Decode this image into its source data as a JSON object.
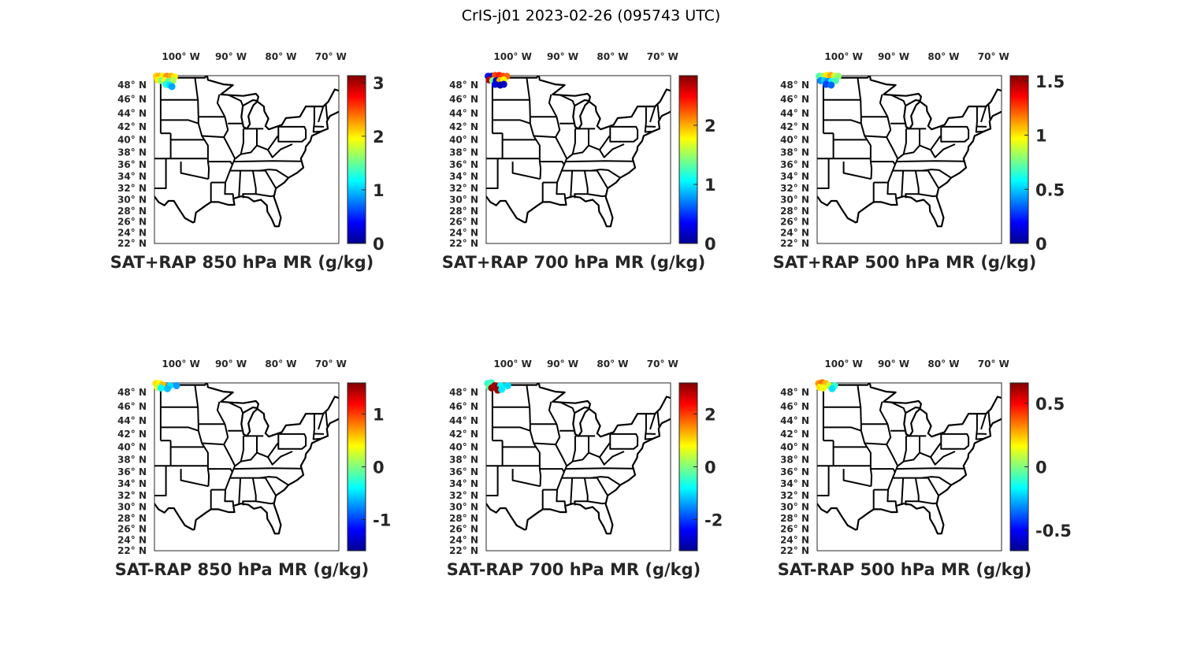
{
  "figure": {
    "title": "CrIS-j01 2023-02-26 (095743 UTC)"
  },
  "lon_ticks": [
    {
      "value": -100,
      "label": "100° W"
    },
    {
      "value": -90,
      "label": "90° W"
    },
    {
      "value": -80,
      "label": "80° W"
    },
    {
      "value": -70,
      "label": "70° W"
    }
  ],
  "lat_ticks": [
    {
      "value": 48,
      "label": "48° N"
    },
    {
      "value": 46,
      "label": "46° N"
    },
    {
      "value": 44,
      "label": "44° N"
    },
    {
      "value": 42,
      "label": "42° N"
    },
    {
      "value": 40,
      "label": "40° N"
    },
    {
      "value": 38,
      "label": "38° N"
    },
    {
      "value": 36,
      "label": "36° N"
    },
    {
      "value": 34,
      "label": "34° N"
    },
    {
      "value": 32,
      "label": "32° N"
    },
    {
      "value": 30,
      "label": "30° N"
    },
    {
      "value": 28,
      "label": "28° N"
    },
    {
      "value": 26,
      "label": "26° N"
    },
    {
      "value": 24,
      "label": "24° N"
    },
    {
      "value": 22,
      "label": "22° N"
    }
  ],
  "colors": {
    "frame": "#262626",
    "text": "#262626",
    "colormap": "jet"
  },
  "chart_data": [
    {
      "type": "scatter-map",
      "title": "SAT+RAP 850 hPa MR (g/kg)",
      "clim": [
        0,
        3.13
      ],
      "colorbar_ticks": [
        {
          "value": 0,
          "label": "0"
        },
        {
          "value": 1,
          "label": "1"
        },
        {
          "value": 2,
          "label": "2"
        },
        {
          "value": 3,
          "label": "3"
        }
      ],
      "points": [
        [
          -104.9,
          49.2,
          2.1
        ],
        [
          -104.3,
          49.2,
          2.2
        ],
        [
          -103.6,
          49.2,
          2.0
        ],
        [
          -102.8,
          49.2,
          2.3
        ],
        [
          -102.0,
          49.2,
          2.2
        ],
        [
          -101.3,
          49.1,
          2.0
        ],
        [
          -104.6,
          48.7,
          2.0
        ],
        [
          -103.9,
          48.6,
          1.6
        ],
        [
          -103.2,
          48.6,
          1.9
        ],
        [
          -102.5,
          48.5,
          1.5
        ],
        [
          -101.6,
          48.6,
          1.7
        ],
        [
          -103.0,
          48.1,
          1.3
        ],
        [
          -102.3,
          48.0,
          1.1
        ],
        [
          -101.8,
          47.8,
          0.9
        ]
      ]
    },
    {
      "type": "scatter-map",
      "title": "SAT+RAP 700 hPa MR (g/kg)",
      "clim": [
        0,
        2.84
      ],
      "colorbar_ticks": [
        {
          "value": 0,
          "label": "0"
        },
        {
          "value": 1,
          "label": "1"
        },
        {
          "value": 2,
          "label": "2"
        }
      ],
      "points": [
        [
          -104.9,
          49.2,
          0.4
        ],
        [
          -104.2,
          49.2,
          0.2
        ],
        [
          -103.5,
          49.3,
          2.3
        ],
        [
          -102.7,
          49.3,
          2.4
        ],
        [
          -101.9,
          49.2,
          2.3
        ],
        [
          -101.2,
          49.2,
          2.2
        ],
        [
          -104.7,
          48.7,
          2.7
        ],
        [
          -104.0,
          48.6,
          1.4
        ],
        [
          -103.3,
          48.6,
          0.2
        ],
        [
          -102.6,
          48.6,
          2.0
        ],
        [
          -101.8,
          48.7,
          1.8
        ],
        [
          -103.5,
          48.1,
          0.3
        ],
        [
          -102.5,
          48.0,
          0.1
        ],
        [
          -101.8,
          48.1,
          0.2
        ]
      ]
    },
    {
      "type": "scatter-map",
      "title": "SAT+RAP 500 hPa MR (g/kg)",
      "clim": [
        0,
        1.55
      ],
      "colorbar_ticks": [
        {
          "value": 0,
          "label": "0"
        },
        {
          "value": 0.5,
          "label": "0.5"
        },
        {
          "value": 1,
          "label": "1"
        },
        {
          "value": 1.5,
          "label": "1.5"
        }
      ],
      "points": [
        [
          -104.9,
          49.2,
          0.7
        ],
        [
          -104.2,
          49.2,
          0.8
        ],
        [
          -103.4,
          49.3,
          1.0
        ],
        [
          -102.6,
          49.3,
          1.1
        ],
        [
          -101.8,
          49.2,
          0.9
        ],
        [
          -101.1,
          49.2,
          0.8
        ],
        [
          -104.6,
          48.6,
          0.4
        ],
        [
          -103.9,
          48.6,
          0.5
        ],
        [
          -103.2,
          48.5,
          0.4
        ],
        [
          -102.4,
          48.5,
          0.6
        ],
        [
          -101.6,
          48.6,
          0.7
        ],
        [
          -103.5,
          48.1,
          0.3
        ],
        [
          -102.5,
          48.0,
          0.35
        ]
      ]
    },
    {
      "type": "scatter-map",
      "title": "SAT-RAP 850 hPa MR (g/kg)",
      "clim": [
        -1.59,
        1.59
      ],
      "colorbar_ticks": [
        {
          "value": -1,
          "label": "-1"
        },
        {
          "value": 0,
          "label": "0"
        },
        {
          "value": 1,
          "label": "1"
        }
      ],
      "points": [
        [
          -105.0,
          49.2,
          0.5
        ],
        [
          -104.3,
          49.2,
          0.4
        ],
        [
          -103.7,
          49.0,
          0.6
        ],
        [
          -104.7,
          48.7,
          0.3
        ],
        [
          -104.0,
          48.6,
          -0.4
        ],
        [
          -102.2,
          48.9,
          -0.5
        ],
        [
          -100.9,
          48.9,
          -0.7
        ],
        [
          -102.7,
          48.5,
          -0.6
        ]
      ]
    },
    {
      "type": "scatter-map",
      "title": "SAT-RAP 700 hPa MR (g/kg)",
      "clim": [
        -3.18,
        3.18
      ],
      "colorbar_ticks": [
        {
          "value": -2,
          "label": "-2"
        },
        {
          "value": 0,
          "label": "0"
        },
        {
          "value": 2,
          "label": "2"
        }
      ],
      "points": [
        [
          -105.0,
          49.2,
          -0.5
        ],
        [
          -104.3,
          49.3,
          -0.4
        ],
        [
          -104.7,
          48.7,
          -0.2
        ],
        [
          -104.2,
          48.6,
          3.1
        ],
        [
          -103.6,
          48.9,
          3.0
        ],
        [
          -102.4,
          48.9,
          -0.8
        ],
        [
          -101.0,
          48.9,
          -1.0
        ],
        [
          -103.0,
          48.3,
          3.0
        ],
        [
          -102.2,
          48.4,
          -0.9
        ]
      ]
    },
    {
      "type": "scatter-map",
      "title": "SAT-RAP 500 hPa MR (g/kg)",
      "clim": [
        -0.66,
        0.66
      ],
      "colorbar_ticks": [
        {
          "value": -0.5,
          "label": "-0.5"
        },
        {
          "value": 0,
          "label": "0"
        },
        {
          "value": 0.5,
          "label": "0.5"
        }
      ],
      "points": [
        [
          -105.0,
          49.2,
          0.3
        ],
        [
          -104.3,
          49.3,
          0.35
        ],
        [
          -103.6,
          49.2,
          0.25
        ],
        [
          -104.8,
          48.7,
          0.2
        ],
        [
          -104.1,
          48.6,
          0.15
        ],
        [
          -102.9,
          48.9,
          0.1
        ],
        [
          -101.8,
          48.9,
          -0.1
        ],
        [
          -102.3,
          48.5,
          -0.2
        ]
      ]
    }
  ]
}
